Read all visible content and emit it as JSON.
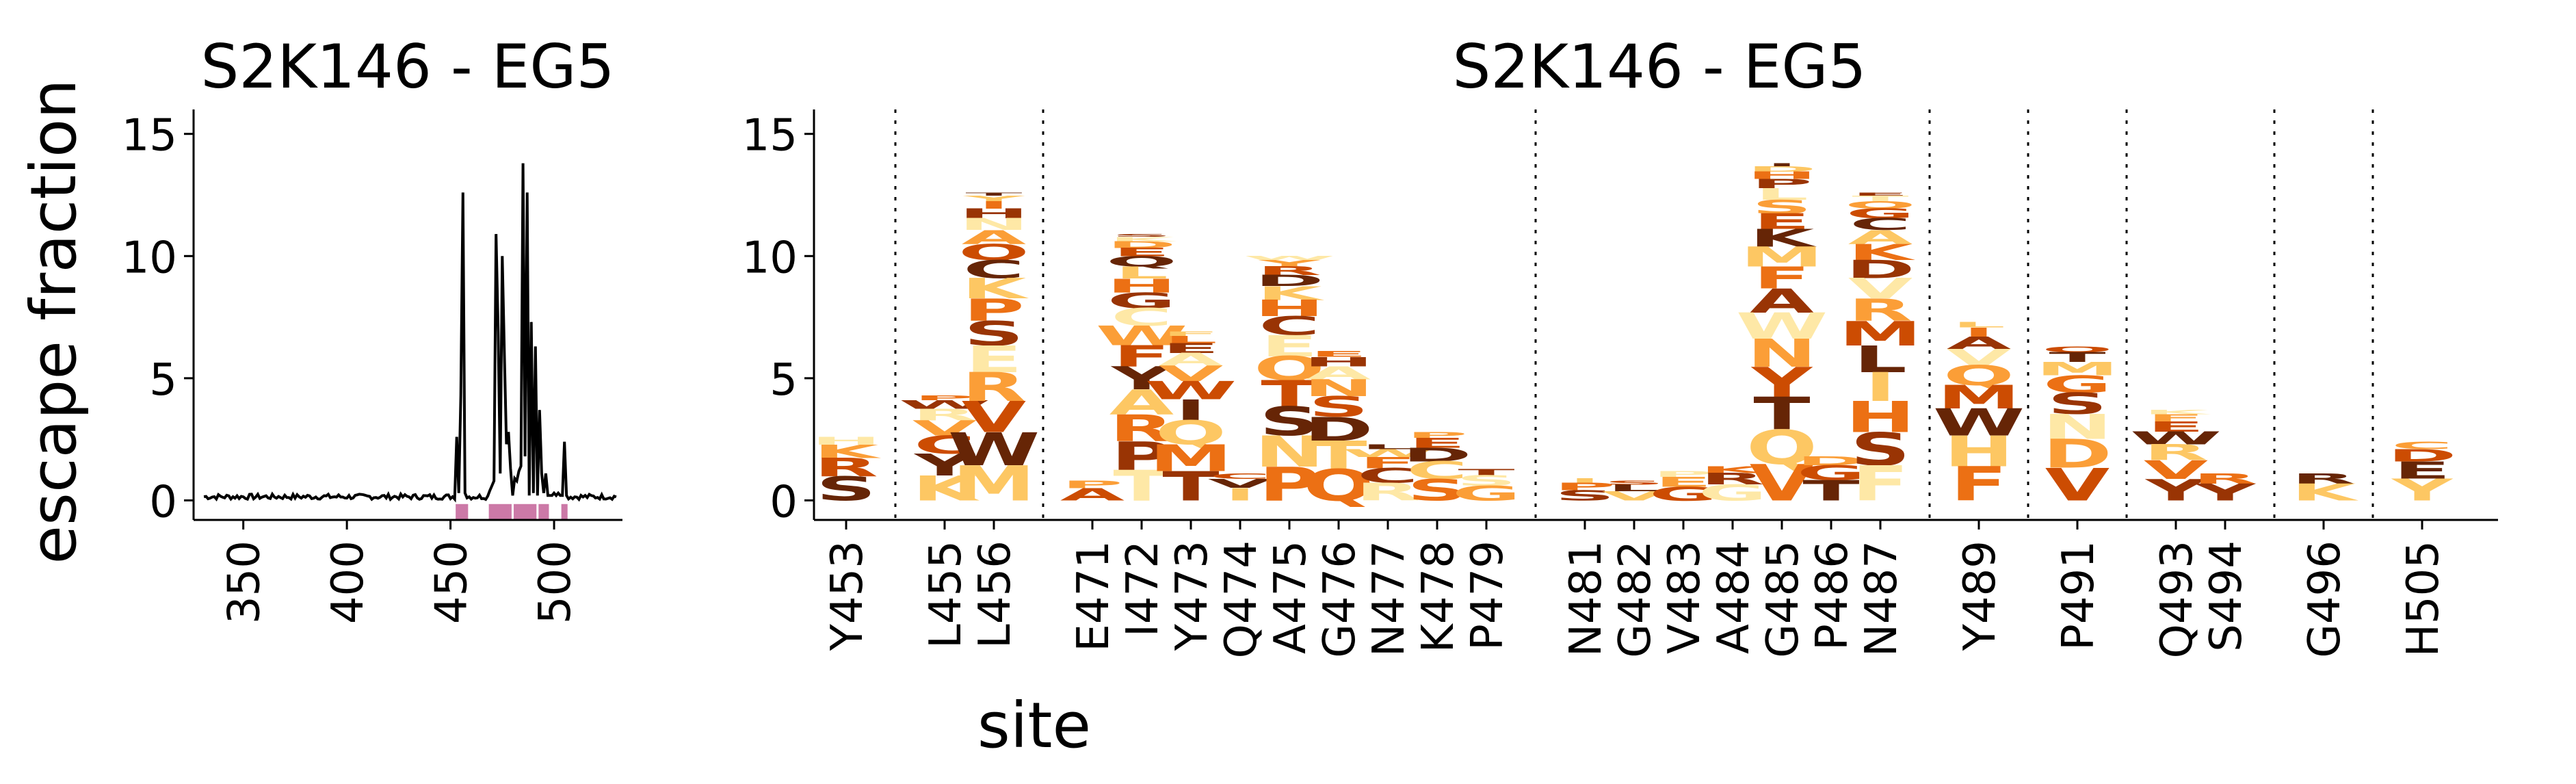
{
  "chart_data": [
    {
      "type": "line",
      "title": "S2K146 - EG5",
      "ylabel": "escape fraction",
      "xlim": [
        326,
        533
      ],
      "ylim": [
        -0.8,
        16
      ],
      "xticks": [
        350,
        400,
        450,
        500
      ],
      "yticks": [
        0,
        5,
        10,
        15
      ],
      "grid": false,
      "series": [
        {
          "name": "",
          "x": [
            453,
            454,
            455,
            456,
            457,
            469,
            470,
            471,
            472,
            473,
            474,
            475,
            476,
            477,
            478,
            479,
            480,
            481,
            482,
            483,
            484,
            485,
            486,
            487,
            488,
            489,
            490,
            491,
            492,
            493,
            494,
            495,
            496,
            497,
            498,
            499,
            500,
            501,
            502,
            503,
            504,
            505,
            506
          ],
          "values": [
            2.6,
            0.3,
            4.3,
            12.6,
            0.3,
            0.4,
            0.6,
            0.8,
            10.9,
            6.9,
            1.1,
            10,
            6.1,
            2.3,
            2.8,
            1.3,
            0.2,
            0.9,
            0.8,
            1.2,
            1.4,
            13.8,
            1.8,
            12.6,
            0.2,
            7.3,
            0.3,
            6.3,
            0.2,
            3.7,
            1.1,
            0.3,
            1.1,
            0.2,
            0.2,
            0.2,
            0.3,
            0.2,
            0.3,
            0.2,
            0.2,
            2.4,
            0.2
          ]
        }
      ],
      "baseline": 0.15,
      "highlight_ranges": [
        [
          453,
          458
        ],
        [
          469,
          479
        ],
        [
          481,
          491
        ],
        [
          493,
          497
        ],
        [
          504,
          506
        ]
      ],
      "highlight_color": "#cc79a7"
    },
    {
      "type": "logo",
      "title": "S2K146 - EG5",
      "xlabel": "site",
      "ylim": [
        -0.8,
        16
      ],
      "yticks": [
        0,
        5,
        10,
        15
      ],
      "sites": [
        "Y453",
        "L455",
        "L456",
        "E471",
        "I472",
        "Y473",
        "Q474",
        "A475",
        "G476",
        "N477",
        "K478",
        "P479",
        "N481",
        "G482",
        "V483",
        "A484",
        "G485",
        "P486",
        "N487",
        "Y489",
        "P491",
        "Q493",
        "S494",
        "G496",
        "H505"
      ],
      "site_totals": [
        2.6,
        4.3,
        12.6,
        0.8,
        10.9,
        6.9,
        1.1,
        10.0,
        6.1,
        2.3,
        2.8,
        1.3,
        0.9,
        0.8,
        1.2,
        1.4,
        13.8,
        1.8,
        12.6,
        7.3,
        6.3,
        3.7,
        1.1,
        1.1,
        2.4
      ],
      "group_breaks_after_site": [
        0,
        2,
        11,
        18,
        19,
        20,
        22,
        23
      ],
      "letters_by_site": [
        [
          "H",
          "K",
          "R",
          "S"
        ],
        [
          "P",
          "W",
          "R",
          "V",
          "C",
          "Y",
          "K"
        ],
        [
          "T",
          "Y",
          "I",
          "H",
          "N",
          "A",
          "Q",
          "C",
          "K",
          "P",
          "S",
          "E",
          "R",
          "V",
          "W",
          "M"
        ],
        [
          "P",
          "A"
        ],
        [
          "S",
          "K",
          "D",
          "E",
          "Q",
          "L",
          "H",
          "G",
          "C",
          "W",
          "F",
          "Y",
          "A",
          "R",
          "P",
          "T"
        ],
        [
          "F",
          "L",
          "E",
          "A",
          "V",
          "W",
          "I",
          "Q",
          "M",
          "T"
        ],
        [
          "C",
          "V",
          "I"
        ],
        [
          "W",
          "Y",
          "R",
          "D",
          "K",
          "H",
          "C",
          "E",
          "Q",
          "T",
          "S",
          "N",
          "P"
        ],
        [
          "E",
          "H",
          "A",
          "N",
          "S",
          "D",
          "T",
          "Q"
        ],
        [
          "L",
          "W",
          "F",
          "C",
          "R"
        ],
        [
          "P",
          "E",
          "D",
          "C",
          "S"
        ],
        [
          "T",
          "S",
          "G"
        ],
        [
          "I",
          "P",
          "S"
        ],
        [
          "S",
          "L",
          "V"
        ],
        [
          "P",
          "E",
          "G"
        ],
        [
          "K",
          "R",
          "G"
        ],
        [
          "I",
          "D",
          "H",
          "P",
          "L",
          "S",
          "E",
          "K",
          "M",
          "F",
          "A",
          "W",
          "N",
          "Y",
          "T",
          "Q",
          "V"
        ],
        [
          "D",
          "G",
          "T"
        ],
        [
          "E",
          "T",
          "Q",
          "G",
          "C",
          "A",
          "K",
          "D",
          "V",
          "R",
          "M",
          "L",
          "I",
          "H",
          "S",
          "F"
        ],
        [
          "L",
          "I",
          "A",
          "V",
          "Q",
          "M",
          "W",
          "H",
          "F"
        ],
        [
          "Q",
          "T",
          "M",
          "G",
          "S",
          "N",
          "D",
          "V"
        ],
        [
          "K",
          "F",
          "E",
          "W",
          "R",
          "V",
          "Y"
        ],
        [
          "R",
          "Y"
        ],
        [
          "R",
          "K"
        ],
        [
          "C",
          "D",
          "E",
          "Y"
        ]
      ],
      "letter_palette": [
        "#fee8a6",
        "#fdc763",
        "#fb9e37",
        "#ec7014",
        "#cc4c02",
        "#993404",
        "#662506"
      ]
    }
  ]
}
